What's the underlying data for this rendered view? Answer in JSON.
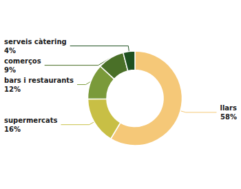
{
  "chart_data": {
    "type": "donut",
    "categories": [
      "llars",
      "supermercats",
      "bars i restaurants",
      "comerços",
      "serveis càtering"
    ],
    "values": [
      58,
      16,
      12,
      9,
      4
    ],
    "value_labels": [
      "58%",
      "16%",
      "12%",
      "9%",
      "4%"
    ],
    "colors": [
      "#F5C878",
      "#C8BF45",
      "#7A9A3A",
      "#4A7028",
      "#1E5020"
    ],
    "data_labels": true
  }
}
